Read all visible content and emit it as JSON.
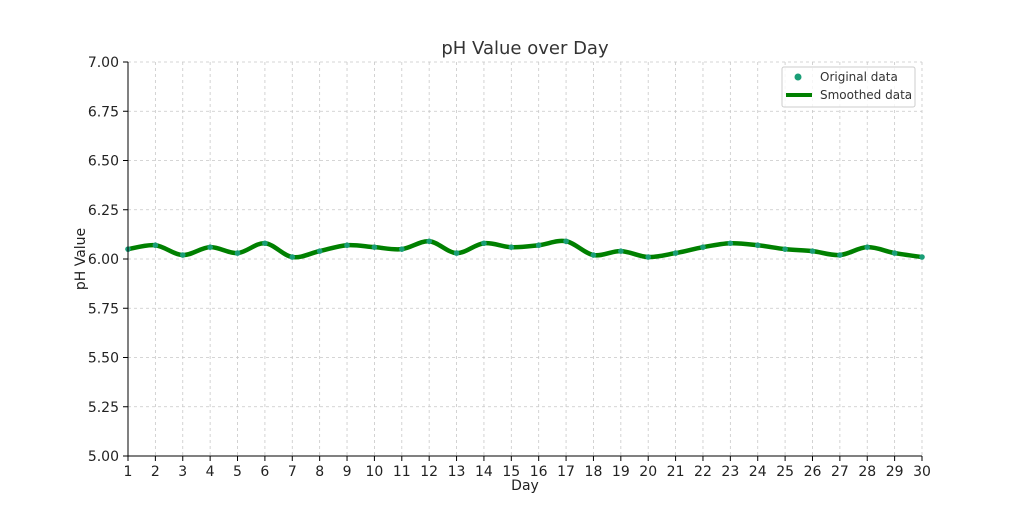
{
  "chart_data": {
    "type": "line",
    "title": "pH Value over Day",
    "xlabel": "Day",
    "ylabel": "pH Value",
    "xlim": [
      1,
      30
    ],
    "ylim": [
      5.0,
      7.0
    ],
    "x_ticks": [
      1,
      2,
      3,
      4,
      5,
      6,
      7,
      8,
      9,
      10,
      11,
      12,
      13,
      14,
      15,
      16,
      17,
      18,
      19,
      20,
      21,
      22,
      23,
      24,
      25,
      26,
      27,
      28,
      29,
      30
    ],
    "y_ticks": [
      "5.00",
      "5.25",
      "5.50",
      "5.75",
      "6.00",
      "6.25",
      "6.50",
      "6.75",
      "7.00"
    ],
    "grid": true,
    "legend_position": "top-right",
    "x": [
      1,
      2,
      3,
      4,
      5,
      6,
      7,
      8,
      9,
      10,
      11,
      12,
      13,
      14,
      15,
      16,
      17,
      18,
      19,
      20,
      21,
      22,
      23,
      24,
      25,
      26,
      27,
      28,
      29,
      30
    ],
    "series": [
      {
        "name": "Original data",
        "kind": "scatter",
        "color": "#1a9e77",
        "values": [
          6.05,
          6.07,
          6.02,
          6.06,
          6.03,
          6.08,
          6.01,
          6.04,
          6.07,
          6.06,
          6.05,
          6.09,
          6.03,
          6.08,
          6.06,
          6.07,
          6.09,
          6.02,
          6.04,
          6.01,
          6.03,
          6.06,
          6.08,
          6.07,
          6.05,
          6.04,
          6.02,
          6.06,
          6.03,
          6.01
        ]
      },
      {
        "name": "Smoothed data",
        "kind": "line",
        "color": "#008000",
        "values": [
          6.05,
          6.07,
          6.02,
          6.06,
          6.03,
          6.08,
          6.01,
          6.04,
          6.07,
          6.06,
          6.05,
          6.09,
          6.03,
          6.08,
          6.06,
          6.07,
          6.09,
          6.02,
          6.04,
          6.01,
          6.03,
          6.06,
          6.08,
          6.07,
          6.05,
          6.04,
          6.02,
          6.06,
          6.03,
          6.01
        ]
      }
    ]
  }
}
